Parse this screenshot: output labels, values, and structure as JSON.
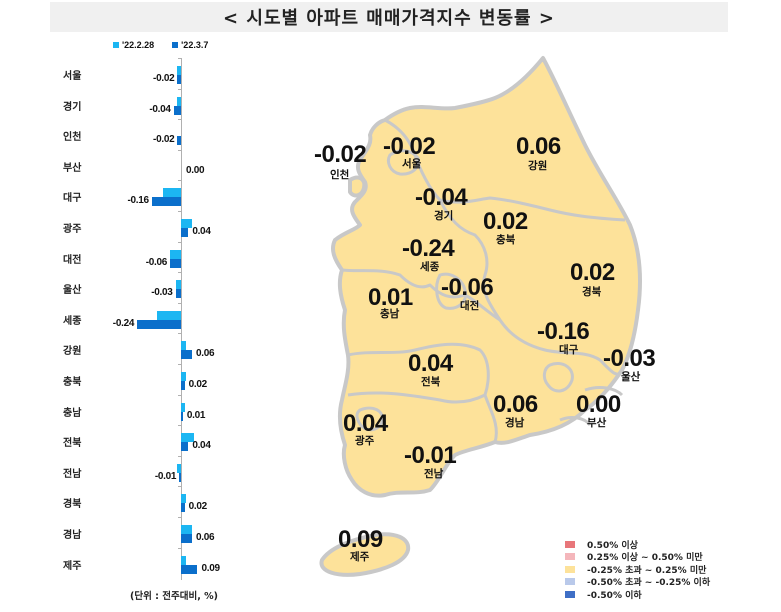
{
  "title": "< 시도별 아파트 매매가격지수 변동률 >",
  "legend": {
    "series": [
      {
        "name": "'22.2.28",
        "color": "#1cb6f2"
      },
      {
        "name": "'22.3.7",
        "color": "#0b6fcb"
      }
    ]
  },
  "unit_note": "(단위 : 전주대비, %)",
  "chart_data": [
    {
      "type": "bar",
      "orientation": "horizontal",
      "title": "시도별 아파트 매매가격지수 변동률",
      "categories": [
        "서울",
        "경기",
        "인천",
        "부산",
        "대구",
        "광주",
        "대전",
        "울산",
        "세종",
        "강원",
        "충북",
        "충남",
        "전북",
        "전남",
        "경북",
        "경남",
        "제주"
      ],
      "series": [
        {
          "name": "'22.2.28",
          "values": [
            -0.02,
            -0.02,
            0.0,
            0.0,
            -0.1,
            0.06,
            -0.06,
            -0.03,
            -0.13,
            0.03,
            0.03,
            0.02,
            0.07,
            -0.02,
            0.03,
            0.06,
            0.03
          ]
        },
        {
          "name": "'22.3.7",
          "values": [
            -0.02,
            -0.04,
            -0.02,
            0.0,
            -0.16,
            0.04,
            -0.06,
            -0.03,
            -0.24,
            0.06,
            0.02,
            0.01,
            0.04,
            -0.01,
            0.02,
            0.06,
            0.09
          ]
        }
      ],
      "data_labels": [
        "-0.02",
        "-0.04",
        "-0.02",
        "0.00",
        "-0.16",
        "0.04",
        "-0.06",
        "-0.03",
        "-0.24",
        "0.06",
        "0.02",
        "0.01",
        "0.04",
        "-0.01",
        "0.02",
        "0.06",
        "0.09"
      ],
      "xlabel": "",
      "ylabel": "",
      "unit": "(단위 : 전주대비, %)",
      "legend_position": "top",
      "grid": false
    },
    {
      "type": "choropleth-map",
      "title": "시도별 아파트 매매가격지수 변동률 ('22.3.7)",
      "regions": [
        {
          "name": "인천",
          "value": "-0.02"
        },
        {
          "name": "서울",
          "value": "-0.02"
        },
        {
          "name": "강원",
          "value": "0.06"
        },
        {
          "name": "경기",
          "value": "-0.04"
        },
        {
          "name": "충북",
          "value": "0.02"
        },
        {
          "name": "세종",
          "value": "-0.24"
        },
        {
          "name": "충남",
          "value": "0.01"
        },
        {
          "name": "대전",
          "value": "-0.06"
        },
        {
          "name": "경북",
          "value": "0.02"
        },
        {
          "name": "대구",
          "value": "-0.16"
        },
        {
          "name": "울산",
          "value": "-0.03"
        },
        {
          "name": "전북",
          "value": "0.04"
        },
        {
          "name": "광주",
          "value": "0.04"
        },
        {
          "name": "경남",
          "value": "0.06"
        },
        {
          "name": "부산",
          "value": "0.00"
        },
        {
          "name": "전남",
          "value": "-0.01"
        },
        {
          "name": "제주",
          "value": "0.09"
        }
      ],
      "legend": [
        {
          "label": "0.50% 이상",
          "color": "#e8767a"
        },
        {
          "label": "0.25% 이상 ~ 0.50% 미만",
          "color": "#f4b6bb"
        },
        {
          "label": "-0.25% 초과 ~ 0.25% 미만",
          "color": "#fde29a"
        },
        {
          "label": "-0.50% 초과 ~ -0.25% 이하",
          "color": "#b9c9ea"
        },
        {
          "label": "-0.50% 이하",
          "color": "#3f6fc6"
        }
      ]
    }
  ],
  "colors": {
    "map_fill": "#fde29a",
    "map_border": "#c8c8c8",
    "prev_bar": "#1cb6f2",
    "curr_bar": "#0b6fcb",
    "title_bg": "#f0f0f0"
  }
}
